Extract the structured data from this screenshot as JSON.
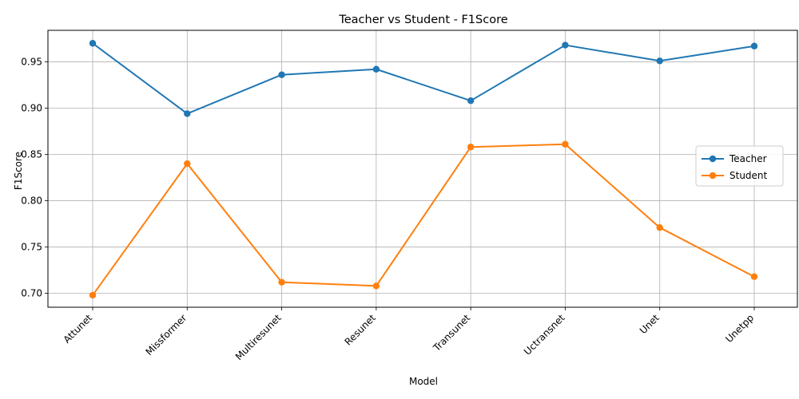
{
  "chart_data": {
    "type": "line",
    "title": "Teacher vs Student - F1Score",
    "xlabel": "Model",
    "ylabel": "F1Score",
    "categories": [
      "Attunet",
      "Missformer",
      "Multiresunet",
      "Resunet",
      "Transunet",
      "Uctransnet",
      "Unet",
      "Unetpp"
    ],
    "series": [
      {
        "name": "Teacher",
        "color": "#1f77b4",
        "values": [
          0.97,
          0.894,
          0.936,
          0.942,
          0.908,
          0.968,
          0.951,
          0.967
        ]
      },
      {
        "name": "Student",
        "color": "#ff7f0e",
        "values": [
          0.698,
          0.84,
          0.712,
          0.708,
          0.858,
          0.861,
          0.771,
          0.718
        ]
      }
    ],
    "ylim": [
      0.685,
      0.984
    ],
    "yticks": [
      "0.70",
      "0.75",
      "0.80",
      "0.85",
      "0.90",
      "0.95"
    ],
    "grid": true,
    "legend_position": "center-right",
    "marker": "circle"
  }
}
